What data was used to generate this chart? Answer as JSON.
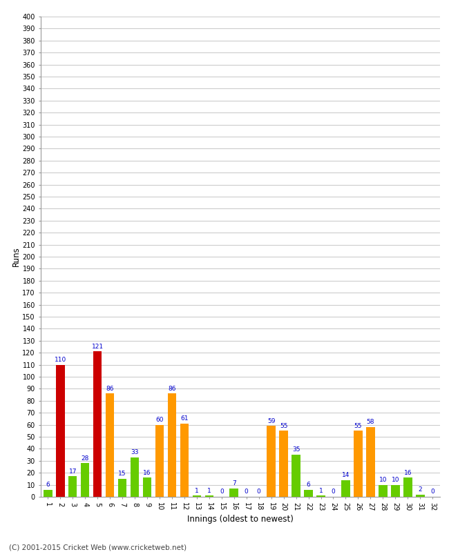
{
  "innings": [
    1,
    2,
    3,
    4,
    5,
    6,
    7,
    8,
    9,
    10,
    11,
    12,
    13,
    14,
    15,
    16,
    17,
    18,
    19,
    20,
    21,
    22,
    23,
    24,
    25,
    26,
    27,
    28,
    29,
    30,
    31,
    32
  ],
  "values": [
    6,
    110,
    17,
    28,
    121,
    86,
    15,
    33,
    16,
    60,
    86,
    61,
    1,
    1,
    0,
    7,
    0,
    0,
    59,
    55,
    35,
    6,
    1,
    0,
    14,
    55,
    58,
    10,
    10,
    16,
    2,
    0
  ],
  "colors": [
    "#66cc00",
    "#cc0000",
    "#66cc00",
    "#66cc00",
    "#cc0000",
    "#ff9900",
    "#66cc00",
    "#66cc00",
    "#66cc00",
    "#ff9900",
    "#ff9900",
    "#ff9900",
    "#66cc00",
    "#66cc00",
    "#66cc00",
    "#66cc00",
    "#66cc00",
    "#66cc00",
    "#ff9900",
    "#ff9900",
    "#66cc00",
    "#66cc00",
    "#66cc00",
    "#66cc00",
    "#66cc00",
    "#ff9900",
    "#ff9900",
    "#66cc00",
    "#66cc00",
    "#66cc00",
    "#66cc00",
    "#66cc00"
  ],
  "label_colors": [
    "#0000cc",
    "#0000cc",
    "#0000cc",
    "#0000cc",
    "#0000cc",
    "#0000cc",
    "#0000cc",
    "#0000cc",
    "#0000cc",
    "#0000cc",
    "#0000cc",
    "#0000cc",
    "#0000cc",
    "#0000cc",
    "#0000cc",
    "#0000cc",
    "#0000cc",
    "#0000cc",
    "#0000cc",
    "#0000cc",
    "#0000cc",
    "#0000cc",
    "#0000cc",
    "#0000cc",
    "#0000cc",
    "#0000cc",
    "#0000cc",
    "#0000cc",
    "#0000cc",
    "#0000cc",
    "#0000cc",
    "#0000cc"
  ],
  "xlabel": "Innings (oldest to newest)",
  "ylabel": "Runs",
  "ylim": [
    0,
    400
  ],
  "background_color": "#ffffff",
  "grid_color": "#cccccc",
  "footer": "(C) 2001-2015 Cricket Web (www.cricketweb.net)"
}
